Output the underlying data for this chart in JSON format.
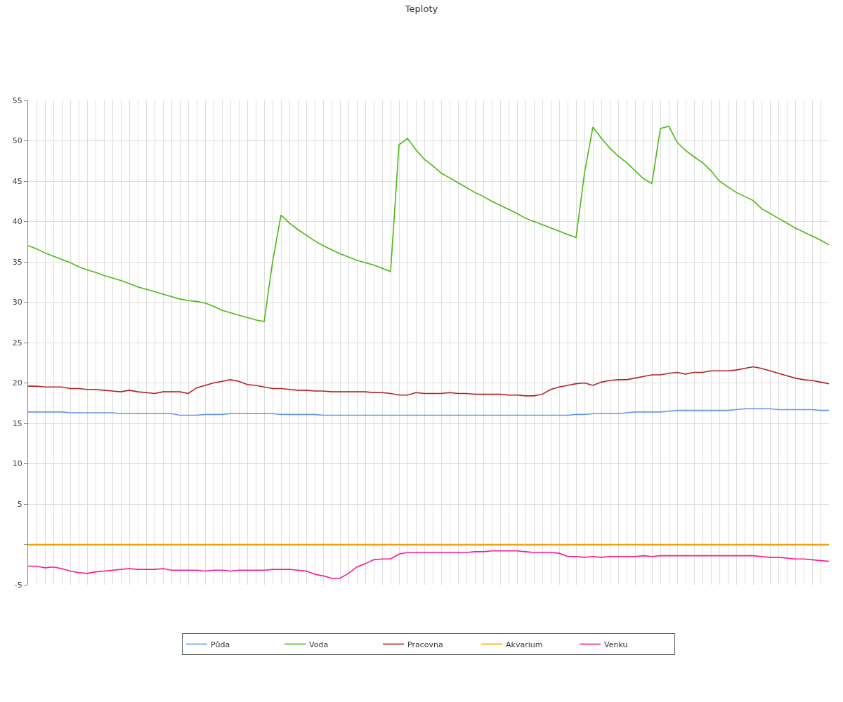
{
  "chart_data": {
    "type": "line",
    "title": "Teploty",
    "categories": [
      null,
      null,
      null,
      null,
      null,
      null,
      null,
      null,
      null,
      null,
      null,
      null,
      null,
      null,
      null,
      null,
      null,
      null,
      null,
      null,
      null,
      null,
      null,
      null,
      null,
      null,
      null,
      null,
      null,
      null,
      null,
      null,
      null,
      null,
      null,
      null,
      null,
      null,
      null,
      null,
      null,
      null,
      null,
      null,
      null,
      null,
      null,
      null,
      null,
      null,
      null,
      null,
      null,
      null,
      null,
      null,
      null,
      null,
      null,
      null,
      null,
      null,
      null,
      null,
      null,
      null,
      null,
      null,
      null,
      null,
      null,
      null,
      null,
      null,
      null,
      null,
      null,
      null,
      null,
      null,
      null,
      null,
      null,
      null,
      null,
      null,
      null,
      null,
      null,
      null,
      null,
      null,
      null,
      null,
      null,
      null
    ],
    "series": [
      {
        "name": "Půda",
        "color": "#6495ed",
        "values": [
          16.4,
          16.4,
          16.4,
          16.4,
          16.4,
          16.3,
          16.3,
          16.3,
          16.3,
          16.3,
          16.3,
          16.2,
          16.2,
          16.2,
          16.2,
          16.2,
          16.2,
          16.2,
          16.0,
          16.0,
          16.0,
          16.1,
          16.1,
          16.1,
          16.2,
          16.2,
          16.2,
          16.2,
          16.2,
          16.2,
          16.1,
          16.1,
          16.1,
          16.1,
          16.1,
          16.0,
          16.0,
          16.0,
          16.0,
          16.0,
          16.0,
          16.0,
          16.0,
          16.0,
          16.0,
          16.0,
          16.0,
          16.0,
          16.0,
          16.0,
          16.0,
          16.0,
          16.0,
          16.0,
          16.0,
          16.0,
          16.0,
          16.0,
          16.0,
          16.0,
          16.0,
          16.0,
          16.0,
          16.0,
          16.0,
          16.1,
          16.1,
          16.2,
          16.2,
          16.2,
          16.2,
          16.3,
          16.4,
          16.4,
          16.4,
          16.4,
          16.5,
          16.6,
          16.6,
          16.6,
          16.6,
          16.6,
          16.6,
          16.6,
          16.7,
          16.8,
          16.8,
          16.8,
          16.8,
          16.7,
          16.7,
          16.7,
          16.7,
          16.7,
          16.6,
          16.6
        ]
      },
      {
        "name": "Voda",
        "color": "#4cb814",
        "values": [
          37.0,
          36.6,
          36.1,
          35.7,
          35.3,
          34.9,
          34.4,
          34.0,
          33.7,
          33.3,
          33.0,
          32.7,
          32.3,
          31.9,
          31.6,
          31.3,
          31.0,
          30.7,
          30.4,
          30.2,
          30.1,
          29.9,
          29.5,
          29.0,
          28.7,
          28.4,
          28.1,
          27.8,
          27.6,
          35.0,
          40.8,
          39.8,
          39.0,
          38.3,
          37.6,
          37.0,
          36.5,
          36.0,
          35.6,
          35.2,
          34.9,
          34.6,
          34.2,
          33.8,
          49.5,
          50.3,
          48.9,
          47.7,
          46.9,
          46.0,
          45.4,
          44.8,
          44.2,
          43.6,
          43.1,
          42.5,
          42.0,
          41.5,
          41.0,
          40.4,
          40.0,
          39.6,
          39.2,
          38.8,
          38.4,
          38.0,
          46.0,
          51.7,
          50.3,
          49.1,
          48.1,
          47.3,
          46.3,
          45.3,
          44.7,
          51.5,
          51.8,
          49.8,
          48.8,
          48.0,
          47.3,
          46.3,
          45.0,
          44.3,
          43.6,
          43.1,
          42.6,
          41.6,
          41.0,
          40.4,
          39.8,
          39.2,
          38.7,
          38.2,
          37.7,
          37.1
        ]
      },
      {
        "name": "Pracovna",
        "color": "#b22222",
        "values": [
          19.6,
          19.6,
          19.5,
          19.5,
          19.5,
          19.3,
          19.3,
          19.2,
          19.2,
          19.1,
          19.0,
          18.9,
          19.1,
          18.9,
          18.8,
          18.7,
          18.9,
          18.9,
          18.9,
          18.7,
          19.4,
          19.7,
          20.0,
          20.2,
          20.4,
          20.2,
          19.8,
          19.7,
          19.5,
          19.3,
          19.3,
          19.2,
          19.1,
          19.1,
          19.0,
          19.0,
          18.9,
          18.9,
          18.9,
          18.9,
          18.9,
          18.8,
          18.8,
          18.7,
          18.5,
          18.5,
          18.8,
          18.7,
          18.7,
          18.7,
          18.8,
          18.7,
          18.7,
          18.6,
          18.6,
          18.6,
          18.6,
          18.5,
          18.5,
          18.4,
          18.4,
          18.6,
          19.2,
          19.5,
          19.7,
          19.9,
          20.0,
          19.7,
          20.1,
          20.3,
          20.4,
          20.4,
          20.6,
          20.8,
          21.0,
          21.0,
          21.2,
          21.3,
          21.1,
          21.3,
          21.3,
          21.5,
          21.5,
          21.5,
          21.6,
          21.8,
          22.0,
          21.8,
          21.5,
          21.2,
          20.9,
          20.6,
          20.4,
          20.3,
          20.1,
          19.9
        ]
      },
      {
        "name": "Akvarium",
        "color": "#ffa500",
        "values": [
          0,
          0,
          0,
          0,
          0,
          0,
          0,
          0,
          0,
          0,
          0,
          0,
          0,
          0,
          0,
          0,
          0,
          0,
          0,
          0,
          0,
          0,
          0,
          0,
          0,
          0,
          0,
          0,
          0,
          0,
          0,
          0,
          0,
          0,
          0,
          0,
          0,
          0,
          0,
          0,
          0,
          0,
          0,
          0,
          0,
          0,
          0,
          0,
          0,
          0,
          0,
          0,
          0,
          0,
          0,
          0,
          0,
          0,
          0,
          0,
          0,
          0,
          0,
          0,
          0,
          0,
          0,
          0,
          0,
          0,
          0,
          0,
          0,
          0,
          0,
          0,
          0,
          0,
          0,
          0,
          0,
          0,
          0,
          0,
          0,
          0,
          0,
          0,
          0,
          0,
          0,
          0,
          0,
          0,
          0,
          0
        ]
      },
      {
        "name": "Venku",
        "color": "#ff1493",
        "values": [
          -2.7,
          -2.7,
          -2.9,
          -2.8,
          -3.0,
          -3.3,
          -3.5,
          -3.6,
          -3.4,
          -3.3,
          -3.2,
          -3.1,
          -3.0,
          -3.1,
          -3.1,
          -3.1,
          -3.0,
          -3.2,
          -3.2,
          -3.2,
          -3.2,
          -3.3,
          -3.2,
          -3.2,
          -3.3,
          -3.2,
          -3.2,
          -3.2,
          -3.2,
          -3.1,
          -3.1,
          -3.1,
          -3.2,
          -3.3,
          -3.7,
          -3.9,
          -4.2,
          -4.2,
          -3.6,
          -2.8,
          -2.4,
          -1.9,
          -1.8,
          -1.8,
          -1.2,
          -1.0,
          -1.0,
          -1.0,
          -1.0,
          -1.0,
          -1.0,
          -1.0,
          -1.0,
          -0.9,
          -0.9,
          -0.8,
          -0.8,
          -0.8,
          -0.8,
          -0.9,
          -1.0,
          -1.0,
          -1.0,
          -1.1,
          -1.5,
          -1.5,
          -1.6,
          -1.5,
          -1.6,
          -1.5,
          -1.5,
          -1.5,
          -1.5,
          -1.4,
          -1.5,
          -1.4,
          -1.4,
          -1.4,
          -1.4,
          -1.4,
          -1.4,
          -1.4,
          -1.4,
          -1.4,
          -1.4,
          -1.4,
          -1.4,
          -1.5,
          -1.6,
          -1.6,
          -1.7,
          -1.8,
          -1.8,
          -1.9,
          -2.0,
          -2.1
        ]
      }
    ],
    "ylim": [
      -5,
      55
    ],
    "yticks": [
      -5,
      {
        "value": 0,
        "label": null
      },
      5,
      10,
      15,
      20,
      25,
      30,
      35,
      40,
      45,
      50,
      55
    ],
    "grid": true,
    "legend": "bottom",
    "marker": "none",
    "line_style": "solid",
    "tick_labels": "y"
  }
}
